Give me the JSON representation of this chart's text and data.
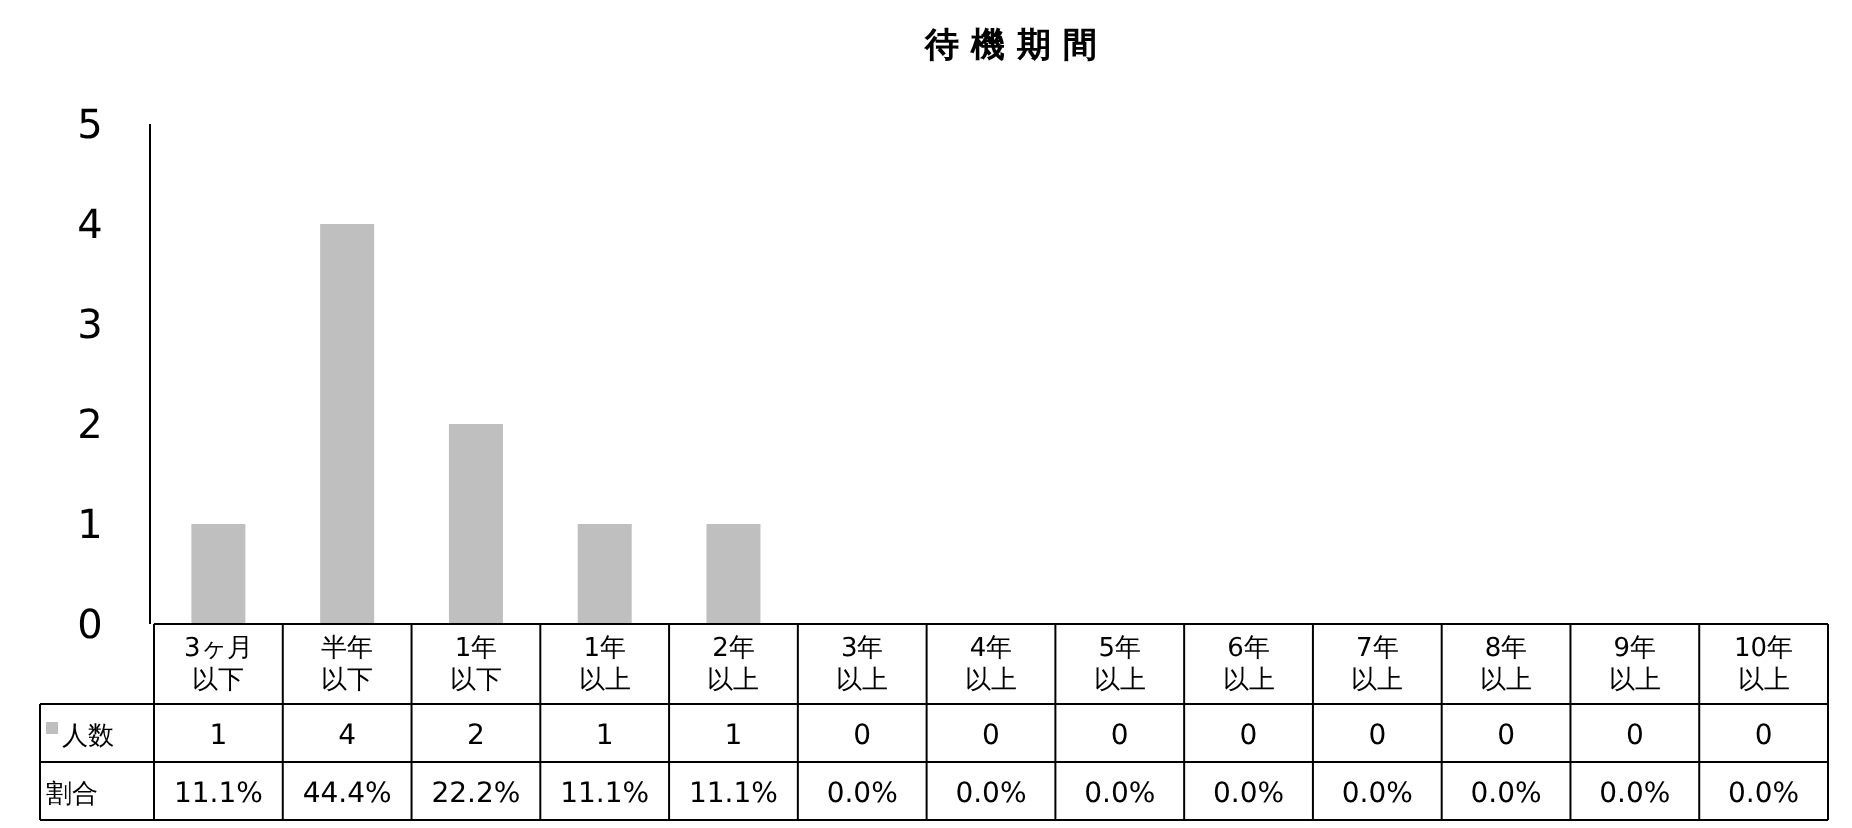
{
  "chart_data": {
    "type": "bar",
    "title": "待 機 期 間",
    "categories": [
      "3ヶ月以下",
      "半年以下",
      "1年以下",
      "1年以上",
      "2年以上",
      "3年以上",
      "4年以上",
      "5年以上",
      "6年以上",
      "7年以上",
      "8年以上",
      "9年以上",
      "10年以上"
    ],
    "series": [
      {
        "name": "人数",
        "color": "#bfbfbf",
        "values": [
          1,
          4,
          2,
          1,
          1,
          0,
          0,
          0,
          0,
          0,
          0,
          0,
          0
        ]
      }
    ],
    "annotations": [
      "割合",
      "11.1%",
      "44.4%",
      "22.2%",
      "11.1%",
      "11.1%",
      "0.0%",
      "0.0%",
      "0.0%",
      "0.0%",
      "0.0%",
      "0.0%",
      "0.0%",
      "0.0%"
    ],
    "ylim": [
      0,
      5
    ],
    "yticks": [
      0,
      1,
      2,
      3,
      4,
      5
    ],
    "data_labels": true,
    "grid": false,
    "legend": "left"
  }
}
